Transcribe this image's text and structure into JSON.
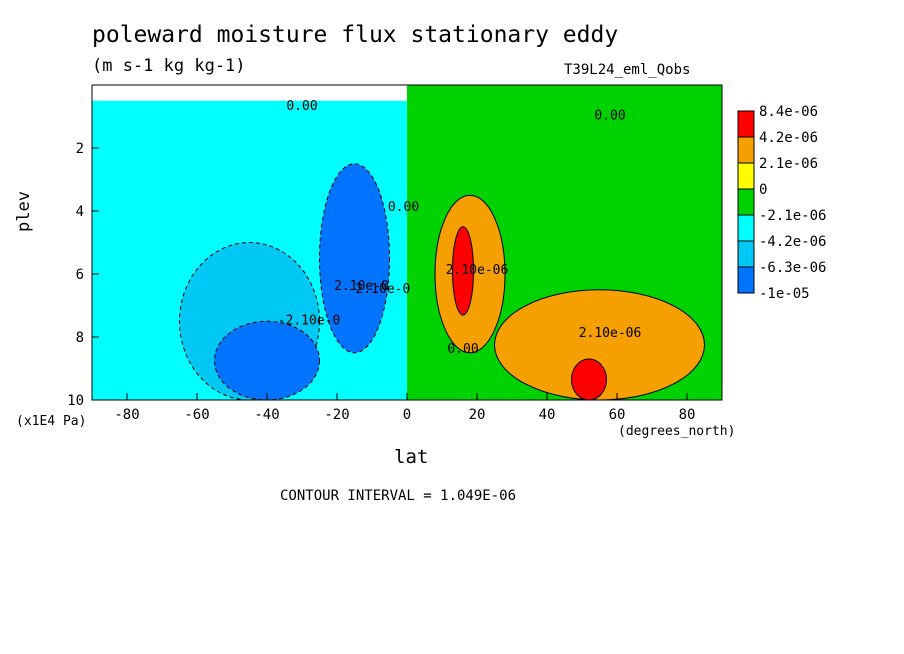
{
  "chart_data": {
    "type": "heatmap",
    "title": "poleward moisture flux stationary eddy",
    "units": "(m s-1 kg kg-1)",
    "experiment_label": "T39L24_eml_Qobs",
    "xlabel": "lat",
    "x_unit": "(degrees_north)",
    "ylabel": "plev",
    "y_unit": "(x1E4 Pa)",
    "xlim": [
      -90,
      90
    ],
    "ylim": [
      10,
      0
    ],
    "x_ticks": [
      -80,
      -60,
      -40,
      -20,
      0,
      20,
      40,
      60,
      80
    ],
    "x_tick_labels": [
      "-80",
      "-60",
      "-40",
      "-20",
      "0",
      "20",
      "40",
      "60",
      "80"
    ],
    "y_ticks": [
      2,
      4,
      6,
      8,
      10
    ],
    "y_tick_labels": [
      "2",
      "4",
      "6",
      "8",
      "10"
    ],
    "contour_interval_text": "CONTOUR INTERVAL = 1.049E-06",
    "contour_labels": [
      {
        "text": "0.00",
        "lat": -30,
        "plev": 0.8
      },
      {
        "text": "0.00",
        "lat": 58,
        "plev": 1.1
      },
      {
        "text": "0.00",
        "lat": -1,
        "plev": 4.0
      },
      {
        "text": "0.00",
        "lat": 16,
        "plev": 8.5
      },
      {
        "text": "2.10e-06",
        "lat": 20,
        "plev": 6.0
      },
      {
        "text": "2.10e-06",
        "lat": 58,
        "plev": 8.0
      },
      {
        "text": "-2.10e-0",
        "lat": -28,
        "plev": 7.6
      },
      {
        "text": "2.10e-0",
        "lat": -13,
        "plev": 6.5
      },
      {
        "text": "-2.10e-0",
        "lat": -8,
        "plev": 6.6
      }
    ],
    "colorbar": {
      "levels": [
        "8.4e-06",
        "4.2e-06",
        "2.1e-06",
        "0",
        "-2.1e-06",
        "-4.2e-06",
        "-6.3e-06",
        "-1e-05"
      ],
      "colors": [
        "#ff0000",
        "#f5a000",
        "#ffff00",
        "#00d200",
        "#00ffff",
        "#00c8f5",
        "#0073ff"
      ]
    },
    "regions": [
      {
        "class": 3,
        "name": "positive near-zero flux, broad upper troposphere and northern hemisphere",
        "lat": [
          0,
          90
        ],
        "plev": [
          0,
          10
        ]
      },
      {
        "class": 4,
        "name": "negative near-zero flux, southern hemisphere",
        "lat": [
          -90,
          0
        ],
        "plev": [
          0.5,
          10
        ]
      },
      {
        "class": 1,
        "name": "positive maximum near 15N",
        "lat": [
          8,
          28
        ],
        "plev": [
          3.5,
          8.5
        ]
      },
      {
        "class": 0,
        "name": "peak 15N mid-troposphere",
        "lat": [
          13,
          19
        ],
        "plev": [
          4.5,
          7.3
        ]
      },
      {
        "class": 1,
        "name": "northern mid-latitude positive band",
        "lat": [
          25,
          85
        ],
        "plev": [
          6.5,
          10
        ]
      },
      {
        "class": 0,
        "name": "peak 53N near surface",
        "lat": [
          47,
          57
        ],
        "plev": [
          8.7,
          10
        ]
      },
      {
        "class": 6,
        "name": "negative minimum near 15S",
        "lat": [
          -25,
          -5
        ],
        "plev": [
          2.5,
          8.5
        ]
      },
      {
        "class": 5,
        "name": "southern hemisphere negative region",
        "lat": [
          -65,
          -25
        ],
        "plev": [
          5.0,
          10
        ]
      },
      {
        "class": 6,
        "name": "negative core near 45S surface",
        "lat": [
          -55,
          -25
        ],
        "plev": [
          7.5,
          10
        ]
      }
    ]
  }
}
